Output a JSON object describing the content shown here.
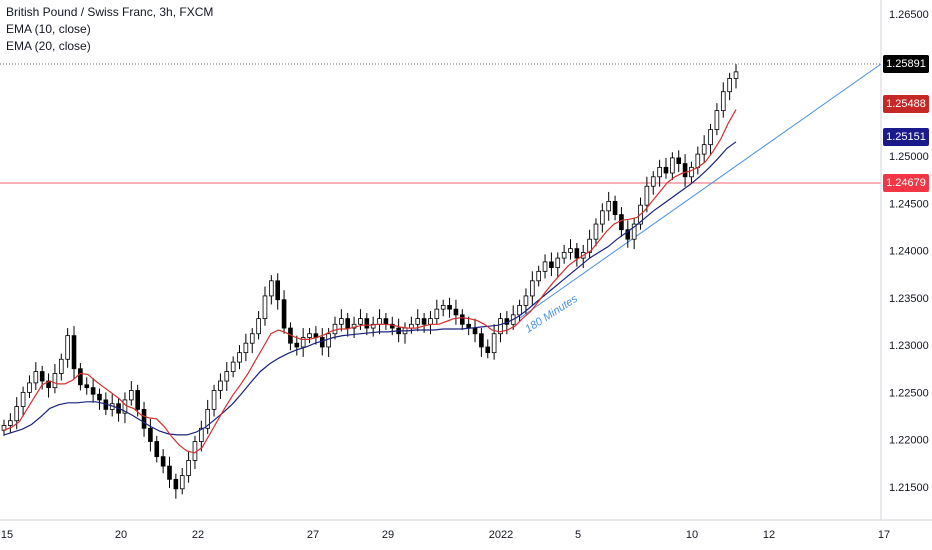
{
  "legend": {
    "title": "British Pound / Swiss Franc, 3h, FXCM",
    "ema10": "EMA (10, close)",
    "ema20": "EMA (20, close)"
  },
  "price_tags": {
    "last": "1.25891",
    "ema10": "1.25488",
    "ema20": "1.25151",
    "level": "1.24679"
  },
  "trendline_label": "180 Minutes",
  "colors": {
    "candle_up": "#ffffff",
    "candle_down": "#000000",
    "candle_border": "#000000",
    "ema10": "#d32f2f",
    "ema20": "#1a237e",
    "level_line": "#f06272",
    "trendline": "#4a90e2",
    "last_tag": "#000000",
    "ema10_tag": "#c62828",
    "ema20_tag": "#1a1a8c",
    "level_tag": "#f23645"
  },
  "chart_data": {
    "type": "candlestick",
    "title": "British Pound / Swiss Franc, 3h, FXCM",
    "x_ticks": [
      "15",
      "20",
      "22",
      "27",
      "29",
      "2022",
      "5",
      "10",
      "12",
      "17"
    ],
    "y_ticks": [
      "1.26500",
      "1.26000",
      "1.25500",
      "1.25000",
      "1.24500",
      "1.24000",
      "1.23500",
      "1.23000",
      "1.22500",
      "1.22000",
      "1.21500"
    ],
    "ylim": [
      1.2115,
      1.2665
    ],
    "horizontal_level": 1.24679,
    "last_price": 1.25891,
    "ema10_last": 1.25488,
    "ema20_last": 1.25151,
    "close": [
      1.2215,
      1.222,
      1.2235,
      1.225,
      1.226,
      1.2272,
      1.2262,
      1.2255,
      1.227,
      1.2285,
      1.231,
      1.2275,
      1.2258,
      1.2255,
      1.2248,
      1.2242,
      1.2232,
      1.2238,
      1.2228,
      1.2242,
      1.2252,
      1.2232,
      1.2212,
      1.2198,
      1.2182,
      1.2172,
      1.2158,
      1.2148,
      1.2162,
      1.2178,
      1.2198,
      1.2212,
      1.2232,
      1.2252,
      1.2262,
      1.2272,
      1.2282,
      1.2292,
      1.2302,
      1.2312,
      1.2328,
      1.2352,
      1.2368,
      1.2348,
      1.2318,
      1.2302,
      1.2298,
      1.2308,
      1.2312,
      1.2308,
      1.2298,
      1.2312,
      1.2322,
      1.2328,
      1.2318,
      1.2322,
      1.2328,
      1.2318,
      1.2322,
      1.2328,
      1.2322,
      1.2318,
      1.2312,
      1.2318,
      1.2322,
      1.2328,
      1.2322,
      1.2328,
      1.2338,
      1.2342,
      1.2338,
      1.2332,
      1.2322,
      1.2318,
      1.2312,
      1.2298,
      1.2292,
      1.2312,
      1.2328,
      1.2322,
      1.2332,
      1.2342,
      1.2352,
      1.2368,
      1.2378,
      1.2388,
      1.2382,
      1.2392,
      1.2398,
      1.2402,
      1.2392,
      1.2398,
      1.2412,
      1.2428,
      1.2442,
      1.2452,
      1.2438,
      1.2422,
      1.2412,
      1.2428,
      1.2448,
      1.2468,
      1.2478,
      1.2488,
      1.2482,
      1.2498,
      1.2492,
      1.2478,
      1.2488,
      1.2502,
      1.2512,
      1.2528,
      1.2548,
      1.2568,
      1.2582,
      1.2589
    ],
    "ema10": [
      1.221,
      1.2213,
      1.2219,
      1.2232,
      1.2245,
      1.2258,
      1.2262,
      1.2259,
      1.2259,
      1.2263,
      1.227,
      1.2269,
      1.2262,
      1.2256,
      1.225,
      1.2244,
      1.2236,
      1.2233,
      1.2226,
      1.2223,
      1.2222,
      1.2214,
      1.2203,
      1.2194,
      1.2188,
      1.2186,
      1.2192,
      1.2206,
      1.222,
      1.2234,
      1.2247,
      1.2258,
      1.227,
      1.2284,
      1.2298,
      1.2312,
      1.2316,
      1.2313,
      1.2309,
      1.2306,
      1.2306,
      1.2308,
      1.2311,
      1.2315,
      1.2317,
      1.2317,
      1.2319,
      1.2321,
      1.2321,
      1.2322,
      1.2322,
      1.2321,
      1.2319,
      1.2318,
      1.2318,
      1.232,
      1.2322,
      1.2322,
      1.2325,
      1.2328,
      1.2329,
      1.2328,
      1.2326,
      1.2322,
      1.2316,
      1.2314,
      1.2316,
      1.232,
      1.2328,
      1.2335,
      1.2345,
      1.2356,
      1.2366,
      1.2375,
      1.2384,
      1.239,
      1.2395,
      1.24,
      1.241,
      1.242,
      1.2428,
      1.2432,
      1.2433,
      1.2435,
      1.2442,
      1.2452,
      1.2462,
      1.2472,
      1.2478,
      1.2482,
      1.2484,
      1.2488,
      1.2494,
      1.2505,
      1.2518,
      1.2535,
      1.2549
    ],
    "ema20": [
      1.2205,
      1.2208,
      1.2211,
      1.2216,
      1.2224,
      1.2233,
      1.2237,
      1.2239,
      1.2239,
      1.224,
      1.224,
      1.2238,
      1.2235,
      1.2231,
      1.2226,
      1.222,
      1.2214,
      1.2209,
      1.2206,
      1.2205,
      1.2205,
      1.2208,
      1.2213,
      1.2221,
      1.2229,
      1.2238,
      1.2249,
      1.2261,
      1.2272,
      1.228,
      1.2286,
      1.2291,
      1.2295,
      1.2298,
      1.2302,
      1.2305,
      1.2308,
      1.231,
      1.2311,
      1.2312,
      1.2313,
      1.2314,
      1.2314,
      1.2315,
      1.2315,
      1.2316,
      1.2316,
      1.2316,
      1.2317,
      1.2317,
      1.2317,
      1.2318,
      1.2319,
      1.232,
      1.2321,
      1.2324,
      1.2329,
      1.2336,
      1.2344,
      1.2352,
      1.236,
      1.2368,
      1.2376,
      1.2384,
      1.2392,
      1.2398,
      1.2404,
      1.2412,
      1.2419,
      1.2426,
      1.2434,
      1.2442,
      1.2449,
      1.2456,
      1.2463,
      1.247,
      1.2478,
      1.2487,
      1.2497,
      1.2508,
      1.2515
    ]
  }
}
